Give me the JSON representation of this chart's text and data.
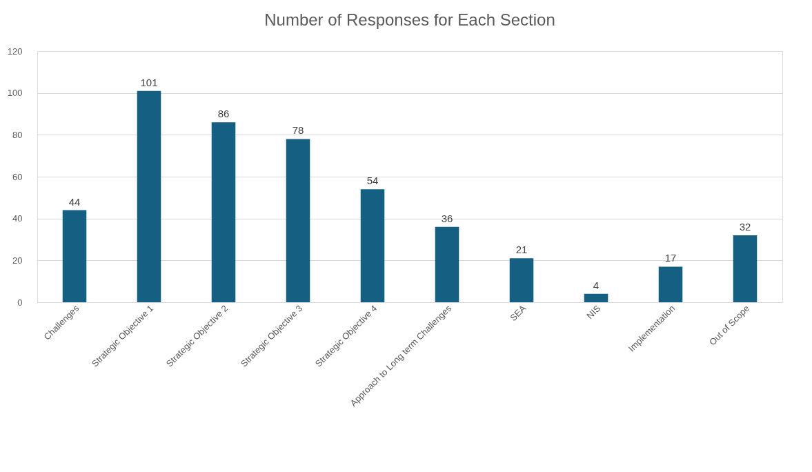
{
  "chart_data": {
    "type": "bar",
    "title": "Number of Responses for Each Section",
    "categories": [
      "Challenges",
      "Strategic Objective 1",
      "Strategic Objective 2",
      "Strategic Objective 3",
      "Strategic Objective 4",
      "Approach to Long term Challenges",
      "SEA",
      "NIS",
      "Implementation",
      "Out of Scope"
    ],
    "values": [
      44,
      101,
      86,
      78,
      54,
      36,
      21,
      4,
      17,
      32
    ],
    "color": "#156082",
    "ylim": [
      0,
      120
    ],
    "yticks": [
      0,
      20,
      40,
      60,
      80,
      100,
      120
    ],
    "grid": "y",
    "data_labels": true
  }
}
